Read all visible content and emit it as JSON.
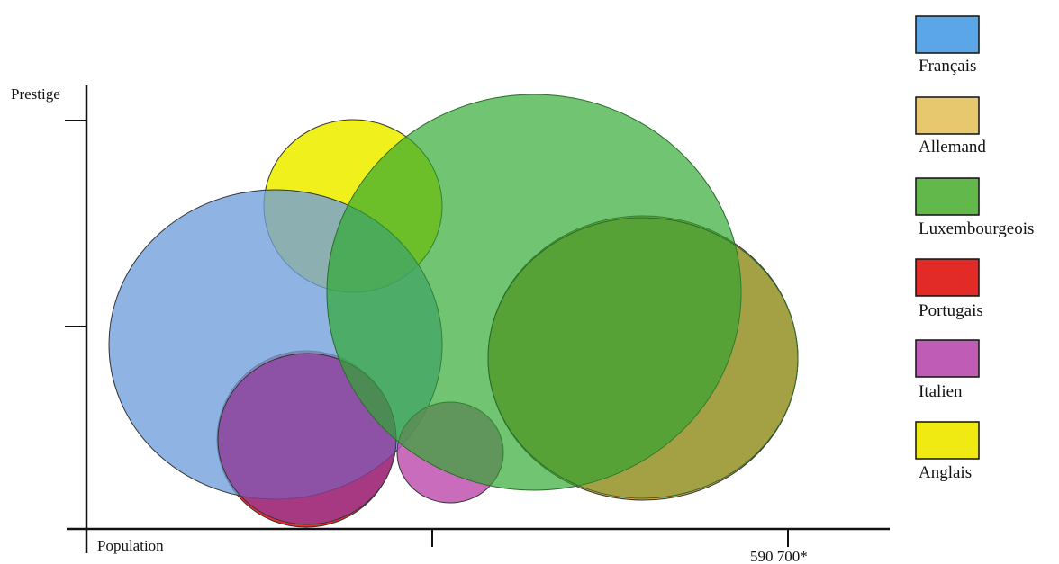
{
  "chart_data": {
    "type": "scatter",
    "title": "",
    "xlabel": "Population",
    "ylabel": "Prestige",
    "x_tick_labels": [
      "",
      "590 700*"
    ],
    "grid": false,
    "legend_placement": "right",
    "series": [
      {
        "name": "Français",
        "color": "#6f9ddb"
      },
      {
        "name": "Allemand",
        "color": "#e0b66a"
      },
      {
        "name": "Luxembourgeois",
        "color": "#52b552"
      },
      {
        "name": "Portugais",
        "color": "#e6232d"
      },
      {
        "name": "Italien",
        "color": "#c060b0"
      },
      {
        "name": "Anglais",
        "color": "#ecec14"
      }
    ]
  }
}
